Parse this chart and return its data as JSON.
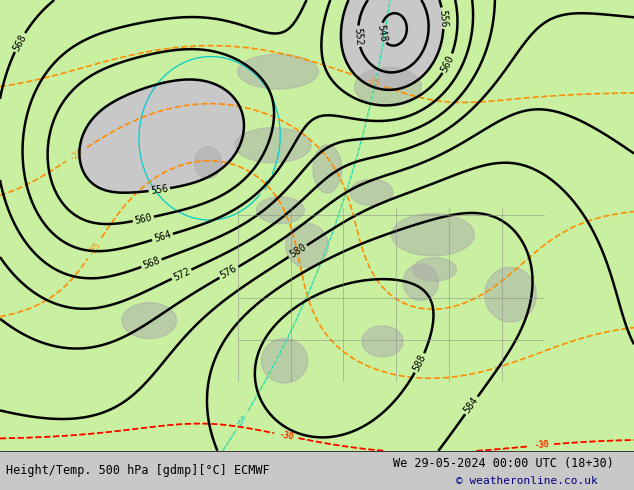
{
  "title_left": "Height/Temp. 500 hPa [gdmp][°C] ECMWF",
  "title_right": "We 29-05-2024 00:00 UTC (18+30)",
  "copyright": "© weatheronline.co.uk",
  "background_color": "#d0d0d0",
  "map_bg_color": "#e8e8e8",
  "green_fill_color": "#c8f0a0",
  "gray_land_color": "#b8b8b8",
  "z500_color": "#000000",
  "temp_positive_color": "#ff8c00",
  "temp_negative_color": "#ff0000",
  "z850_cyan_color": "#00cccc",
  "z850_green_color": "#90ee90",
  "rain_blue_color": "#4488ff",
  "font_size_labels": 7,
  "font_size_bottom": 9,
  "figsize": [
    6.34,
    4.9
  ],
  "dpi": 100
}
